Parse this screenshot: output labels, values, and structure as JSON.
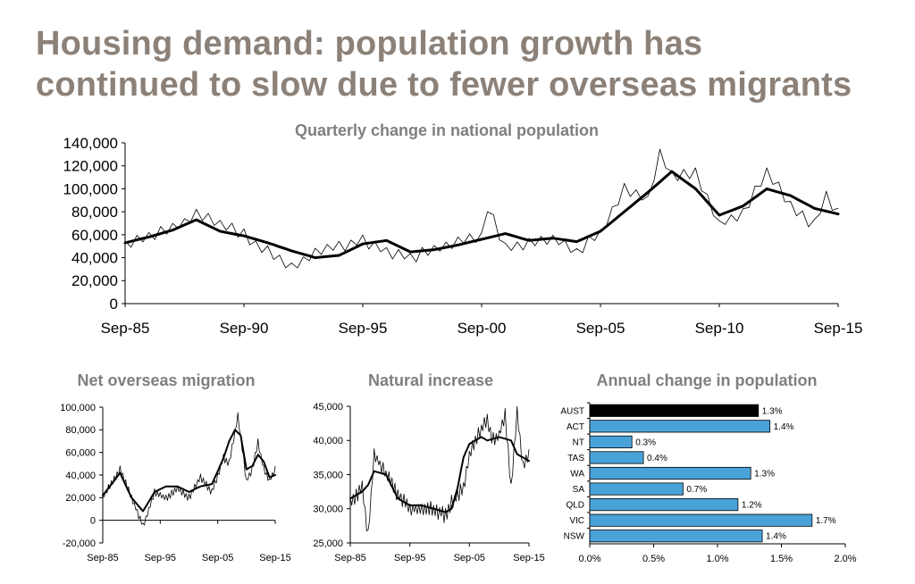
{
  "page": {
    "title_line1": "Housing demand: population growth has",
    "title_line2": "continued to slow due to fewer overseas migrants"
  },
  "chart_data": [
    {
      "type": "line",
      "title": "Quarterly change in national population",
      "y_ticks": [
        "0",
        "20,000",
        "40,000",
        "60,000",
        "80,000",
        "100,000",
        "120,000",
        "140,000"
      ],
      "x_ticks": [
        "Sep-85",
        "Sep-90",
        "Sep-95",
        "Sep-00",
        "Sep-05",
        "Sep-10",
        "Sep-15"
      ],
      "ylim": [
        0,
        140000
      ],
      "xlim": [
        "Sep-85",
        "Sep-15"
      ],
      "grid": false,
      "colors": {
        "quarterly": "#000000",
        "trend": "#000000"
      },
      "series": [
        {
          "key": "quarterly",
          "line": "thin",
          "knots": [
            [
              "Sep-85",
              52000
            ],
            [
              "Sep-87",
              66000
            ],
            [
              "Sep-88",
              78000
            ],
            [
              "Sep-90",
              60000
            ],
            [
              "Sep-92",
              30000
            ],
            [
              "Sep-93",
              45000
            ],
            [
              "Sep-95",
              55000
            ],
            [
              "Sep-96",
              45000
            ],
            [
              "Sep-97",
              40000
            ],
            [
              "Sep-99",
              55000
            ],
            [
              "Sep-00",
              58000
            ],
            [
              "Dec-00",
              83000
            ],
            [
              "Sep-01",
              50000
            ],
            [
              "Sep-03",
              56000
            ],
            [
              "Sep-04",
              45000
            ],
            [
              "Sep-05",
              62000
            ],
            [
              "Sep-06",
              100000
            ],
            [
              "Sep-07",
              90000
            ],
            [
              "Mar-08",
              132000
            ],
            [
              "Sep-08",
              110000
            ],
            [
              "Sep-09",
              115000
            ],
            [
              "Sep-10",
              68000
            ],
            [
              "Sep-11",
              80000
            ],
            [
              "Sep-12",
              116000
            ],
            [
              "Sep-13",
              85000
            ],
            [
              "Sep-14",
              68000
            ],
            [
              "Mar-15",
              93000
            ],
            [
              "Sep-15",
              80000
            ]
          ]
        },
        {
          "key": "trend",
          "line": "thick",
          "knots": [
            [
              "Sep-85",
              53000
            ],
            [
              "Sep-86",
              58000
            ],
            [
              "Sep-87",
              64000
            ],
            [
              "Sep-88",
              73000
            ],
            [
              "Sep-89",
              63000
            ],
            [
              "Sep-90",
              59000
            ],
            [
              "Sep-91",
              53000
            ],
            [
              "Sep-92",
              46000
            ],
            [
              "Sep-93",
              40000
            ],
            [
              "Sep-94",
              42000
            ],
            [
              "Sep-95",
              52000
            ],
            [
              "Sep-96",
              55000
            ],
            [
              "Sep-97",
              45000
            ],
            [
              "Sep-98",
              47000
            ],
            [
              "Sep-99",
              51000
            ],
            [
              "Sep-00",
              56000
            ],
            [
              "Sep-01",
              61000
            ],
            [
              "Sep-02",
              55000
            ],
            [
              "Sep-03",
              57000
            ],
            [
              "Sep-04",
              54000
            ],
            [
              "Sep-05",
              63000
            ],
            [
              "Sep-06",
              80000
            ],
            [
              "Sep-07",
              97000
            ],
            [
              "Sep-08",
              115000
            ],
            [
              "Sep-09",
              100000
            ],
            [
              "Sep-10",
              77000
            ],
            [
              "Sep-11",
              85000
            ],
            [
              "Sep-12",
              100000
            ],
            [
              "Sep-13",
              94000
            ],
            [
              "Sep-14",
              83000
            ],
            [
              "Sep-15",
              78000
            ]
          ]
        }
      ]
    },
    {
      "type": "line",
      "title": "Net overseas migration",
      "y_ticks": [
        "-20,000",
        "0",
        "20,000",
        "40,000",
        "60,000",
        "80,000",
        "100,000"
      ],
      "x_ticks": [
        "Sep-85",
        "Sep-95",
        "Sep-05",
        "Sep-15"
      ],
      "ylim": [
        -20000,
        100000
      ],
      "xlim": [
        "Sep-85",
        "Sep-15"
      ],
      "series": [
        {
          "key": "quarterly",
          "line": "thin",
          "knots": [
            [
              "Sep-85",
              20000
            ],
            [
              "Sep-88",
              45000
            ],
            [
              "Sep-90",
              20000
            ],
            [
              "Sep-92",
              -5000
            ],
            [
              "Sep-94",
              25000
            ],
            [
              "Sep-96",
              20000
            ],
            [
              "Sep-98",
              28000
            ],
            [
              "Sep-00",
              20000
            ],
            [
              "Sep-02",
              38000
            ],
            [
              "Sep-04",
              25000
            ],
            [
              "Sep-06",
              55000
            ],
            [
              "Sep-07",
              50000
            ],
            [
              "Mar-09",
              93000
            ],
            [
              "Sep-10",
              35000
            ],
            [
              "Sep-11",
              45000
            ],
            [
              "Sep-12",
              70000
            ],
            [
              "Sep-13",
              45000
            ],
            [
              "Sep-14",
              35000
            ],
            [
              "Sep-15",
              45000
            ]
          ]
        },
        {
          "key": "trend",
          "line": "thick",
          "knots": [
            [
              "Sep-85",
              22000
            ],
            [
              "Sep-87",
              35000
            ],
            [
              "Sep-88",
              42000
            ],
            [
              "Sep-90",
              20000
            ],
            [
              "Sep-92",
              8000
            ],
            [
              "Sep-94",
              25000
            ],
            [
              "Sep-96",
              30000
            ],
            [
              "Sep-98",
              30000
            ],
            [
              "Sep-00",
              25000
            ],
            [
              "Sep-02",
              30000
            ],
            [
              "Sep-04",
              32000
            ],
            [
              "Sep-06",
              55000
            ],
            [
              "Sep-07",
              70000
            ],
            [
              "Sep-08",
              80000
            ],
            [
              "Sep-09",
              75000
            ],
            [
              "Sep-10",
              45000
            ],
            [
              "Sep-11",
              48000
            ],
            [
              "Sep-12",
              58000
            ],
            [
              "Sep-13",
              52000
            ],
            [
              "Sep-14",
              38000
            ],
            [
              "Sep-15",
              40000
            ]
          ]
        }
      ]
    },
    {
      "type": "line",
      "title": "Natural increase",
      "y_ticks": [
        "25,000",
        "30,000",
        "35,000",
        "40,000",
        "45,000"
      ],
      "x_ticks": [
        "Sep-85",
        "Sep-95",
        "Sep-05",
        "Sep-15"
      ],
      "ylim": [
        25000,
        45000
      ],
      "xlim": [
        "Sep-85",
        "Sep-15"
      ],
      "series": [
        {
          "key": "quarterly",
          "line": "thin",
          "knots": [
            [
              "Sep-85",
              31000
            ],
            [
              "Sep-87",
              33000
            ],
            [
              "Sep-88",
              26000
            ],
            [
              "Sep-89",
              38000
            ],
            [
              "Sep-91",
              35000
            ],
            [
              "Sep-93",
              32000
            ],
            [
              "Sep-95",
              30000
            ],
            [
              "Sep-97",
              30000
            ],
            [
              "Sep-99",
              30000
            ],
            [
              "Sep-01",
              29000
            ],
            [
              "Sep-02",
              31000
            ],
            [
              "Sep-04",
              33000
            ],
            [
              "Sep-05",
              38000
            ],
            [
              "Sep-06",
              40000
            ],
            [
              "Sep-08",
              43000
            ],
            [
              "Sep-09",
              40000
            ],
            [
              "Sep-10",
              41000
            ],
            [
              "Sep-11",
              44000
            ],
            [
              "Sep-12",
              33000
            ],
            [
              "Sep-13",
              44000
            ],
            [
              "Sep-14",
              36000
            ],
            [
              "Sep-15",
              38000
            ]
          ]
        },
        {
          "key": "trend",
          "line": "thick",
          "knots": [
            [
              "Sep-85",
              31500
            ],
            [
              "Sep-87",
              32500
            ],
            [
              "Sep-88",
              33500
            ],
            [
              "Sep-89",
              35500
            ],
            [
              "Sep-91",
              35000
            ],
            [
              "Sep-93",
              31500
            ],
            [
              "Sep-95",
              30500
            ],
            [
              "Sep-97",
              30500
            ],
            [
              "Sep-99",
              30000
            ],
            [
              "Sep-01",
              29500
            ],
            [
              "Sep-02",
              30000
            ],
            [
              "Sep-03",
              33000
            ],
            [
              "Sep-04",
              37500
            ],
            [
              "Sep-05",
              39500
            ],
            [
              "Sep-07",
              40500
            ],
            [
              "Sep-08",
              40000
            ],
            [
              "Sep-10",
              40500
            ],
            [
              "Sep-12",
              40000
            ],
            [
              "Sep-13",
              38000
            ],
            [
              "Sep-14",
              37500
            ],
            [
              "Sep-15",
              37000
            ]
          ]
        }
      ]
    },
    {
      "type": "bar",
      "orientation": "horizontal",
      "title": "Annual change in population",
      "categories": [
        "AUST",
        "ACT",
        "NT",
        "TAS",
        "WA",
        "SA",
        "QLD",
        "VIC",
        "NSW"
      ],
      "values": [
        1.3,
        1.4,
        0.3,
        0.4,
        1.3,
        0.7,
        1.2,
        1.7,
        1.4
      ],
      "value_labels": [
        "1.3%",
        "1.4%",
        "0.3%",
        "0.4%",
        "1.3%",
        "0.7%",
        "1.2%",
        "1.7%",
        "1.4%"
      ],
      "bar_values": [
        1.32,
        1.41,
        0.33,
        0.42,
        1.26,
        0.73,
        1.16,
        1.74,
        1.35
      ],
      "x_ticks": [
        "0.0%",
        "0.5%",
        "1.0%",
        "1.5%",
        "2.0%"
      ],
      "xlim": [
        0,
        2.0
      ],
      "colors": {
        "AUST": "#000000",
        "default": "#4aa3d8",
        "edge": "#000000"
      }
    }
  ]
}
